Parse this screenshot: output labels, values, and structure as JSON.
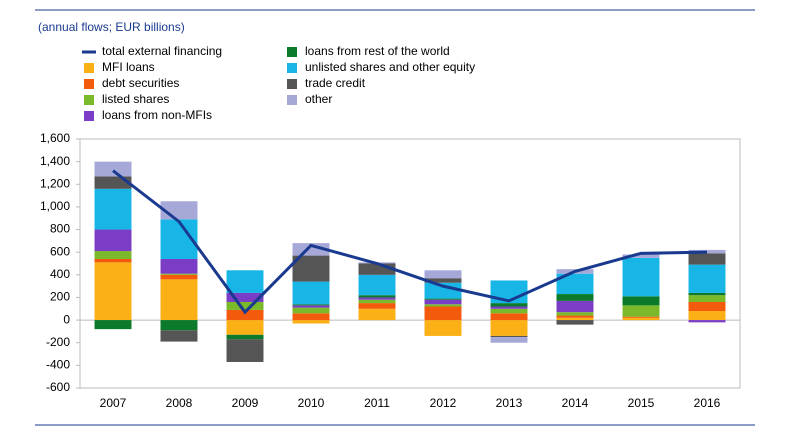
{
  "chart_data": {
    "type": "bar",
    "stacked": true,
    "subtitle": "(annual flows; EUR billions)",
    "categories": [
      "2007",
      "2008",
      "2009",
      "2010",
      "2011",
      "2012",
      "2013",
      "2014",
      "2015",
      "2016"
    ],
    "series": [
      {
        "name": "total external financing",
        "type": "line",
        "color": "#1a3a8f",
        "values": [
          1320,
          870,
          70,
          660,
          500,
          300,
          170,
          430,
          590,
          600
        ]
      },
      {
        "name": "MFI loans",
        "color": "#fbb116",
        "values": [
          510,
          360,
          -130,
          -30,
          100,
          -140,
          -140,
          20,
          20,
          80
        ]
      },
      {
        "name": "debt securities",
        "color": "#f45a0b",
        "values": [
          30,
          40,
          90,
          60,
          50,
          120,
          60,
          20,
          10,
          80
        ]
      },
      {
        "name": "listed shares",
        "color": "#7ab929",
        "values": [
          70,
          10,
          70,
          50,
          30,
          20,
          40,
          30,
          100,
          60
        ]
      },
      {
        "name": "loans from non-MFIs",
        "color": "#7b3dc6",
        "values": [
          190,
          130,
          80,
          20,
          20,
          40,
          20,
          100,
          0,
          -20
        ]
      },
      {
        "name": "loans from rest of the world",
        "color": "#0b7a2a",
        "values": [
          -80,
          -90,
          -40,
          10,
          20,
          10,
          30,
          60,
          80,
          20
        ]
      },
      {
        "name": "unlisted shares and other equity",
        "color": "#17b6e6",
        "values": [
          360,
          350,
          200,
          200,
          180,
          140,
          200,
          180,
          340,
          250
        ]
      },
      {
        "name": "trade credit",
        "color": "#555555",
        "values": [
          110,
          -100,
          -200,
          230,
          100,
          40,
          -10,
          -40,
          0,
          100
        ]
      },
      {
        "name": "other",
        "color": "#a6a8d8",
        "values": [
          130,
          160,
          0,
          110,
          10,
          70,
          -50,
          40,
          30,
          30
        ]
      }
    ],
    "ylim": [
      -600,
      1600
    ],
    "yticks": [
      -600,
      -400,
      -200,
      0,
      200,
      400,
      600,
      800,
      {
        "value": 1000,
        "label": "1,000"
      },
      {
        "value": 1200,
        "label": "1,200"
      },
      {
        "value": 1400,
        "label": "1,400"
      },
      {
        "value": 1600,
        "label": "1,600"
      }
    ]
  }
}
